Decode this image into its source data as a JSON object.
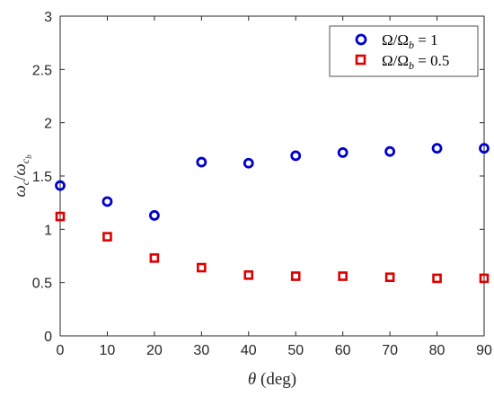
{
  "chart_data": {
    "type": "scatter",
    "xlabel": "θ (deg)",
    "ylabel": "ω_c/ω_c_b",
    "xlim": [
      0,
      90
    ],
    "ylim": [
      0,
      3
    ],
    "xticks": [
      0,
      10,
      20,
      30,
      40,
      50,
      60,
      70,
      80,
      90
    ],
    "yticks": [
      0,
      0.5,
      1,
      1.5,
      2,
      2.5,
      3
    ],
    "ytick_labels": [
      "0",
      "0.5",
      "1",
      "1.5",
      "2",
      "2.5",
      "3"
    ],
    "grid": false,
    "legend_position": "top-right",
    "series": [
      {
        "name": "Ω/Ω_b = 1",
        "marker": "circle",
        "color": "#0000CC",
        "x": [
          0,
          10,
          20,
          30,
          40,
          50,
          60,
          70,
          80,
          90
        ],
        "y": [
          1.41,
          1.26,
          1.13,
          1.63,
          1.62,
          1.69,
          1.72,
          1.73,
          1.76,
          1.76
        ]
      },
      {
        "name": "Ω/Ω_b = 0.5",
        "marker": "square",
        "color": "#DD0000",
        "x": [
          0,
          10,
          20,
          30,
          40,
          50,
          60,
          70,
          80,
          90
        ],
        "y": [
          1.12,
          0.93,
          0.73,
          0.64,
          0.57,
          0.56,
          0.56,
          0.55,
          0.54,
          0.54
        ]
      }
    ]
  }
}
